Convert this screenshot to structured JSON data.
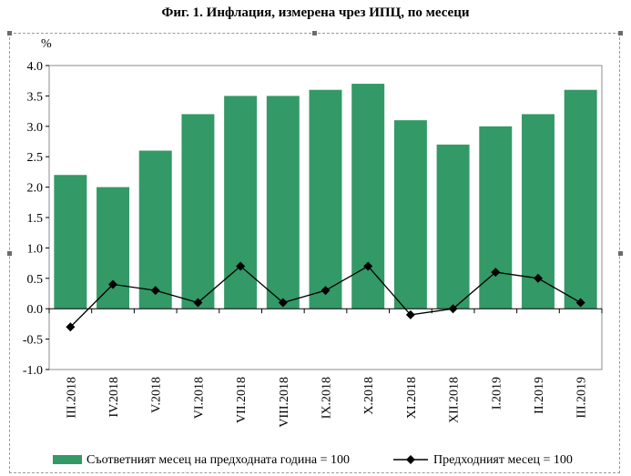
{
  "title": "Фиг. 1. Инфлация, измерена чрез ИПЦ, по месеци",
  "chart_data": {
    "type": "bar",
    "title": "Фиг. 1. Инфлация, измерена чрез ИПЦ, по месеци",
    "ylabel": "%",
    "xlabel": "",
    "ylim": [
      -1.0,
      4.0
    ],
    "y_ticks": [
      "4.0",
      "3.5",
      "3.0",
      "2.5",
      "2.0",
      "1.5",
      "1.0",
      "0.5",
      "0.0",
      "-0.5",
      "-1.0"
    ],
    "grid": false,
    "legend_position": "bottom",
    "categories": [
      "III.2018",
      "IV.2018",
      "V.2018",
      "VI.2018",
      "VII.2018",
      "VIII.2018",
      "IX.2018",
      "X.2018",
      "XI.2018",
      "XII.2018",
      "I.2019",
      "II.2019",
      "III.2019"
    ],
    "series": [
      {
        "name": "Съответният месец на предходната година = 100",
        "type": "bar",
        "color": "#339966",
        "values": [
          2.2,
          2.0,
          2.6,
          3.2,
          3.5,
          3.5,
          3.6,
          3.7,
          3.1,
          2.7,
          3.0,
          3.2,
          3.6
        ]
      },
      {
        "name": "Предходният месец = 100",
        "type": "line",
        "color": "#000000",
        "marker": "diamond",
        "values": [
          -0.3,
          0.4,
          0.3,
          0.1,
          0.7,
          0.1,
          0.3,
          0.7,
          -0.1,
          0.0,
          0.6,
          0.5,
          0.1
        ]
      }
    ]
  }
}
